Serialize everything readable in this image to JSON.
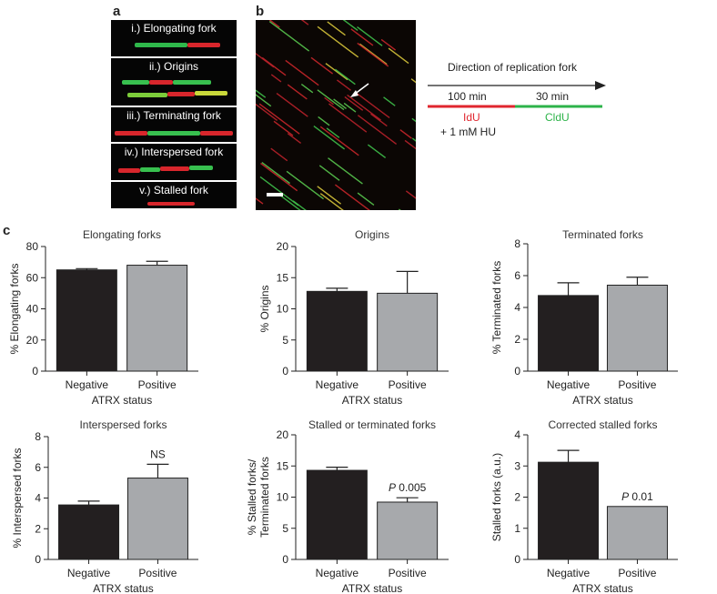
{
  "panels": {
    "a": "a",
    "b": "b",
    "c": "c"
  },
  "fiber_labels": [
    "i.) Elongating fork",
    "ii.) Origins",
    "iii.) Terminating fork",
    "iv.) Interspersed fork",
    "v.) Stalled fork"
  ],
  "diagram": {
    "title": "Direction of replication fork",
    "time1": "100 min",
    "time2": "30 min",
    "label1": "IdU",
    "label2": "CldU",
    "treatment": "+ 1 mM HU"
  },
  "colors": {
    "bar_negative": "#231f20",
    "bar_positive": "#a7a9ac",
    "idu": "#e0262e",
    "cldu": "#2db34a"
  },
  "chart_data": [
    {
      "type": "bar",
      "title": "Elongating forks",
      "xlabel": "ATRX status",
      "ylabel": "% Elongating forks",
      "categories": [
        "Negative",
        "Positive"
      ],
      "values": [
        65,
        68
      ],
      "errors": [
        0.8,
        2.5
      ],
      "ylim": [
        0,
        80
      ],
      "yticks": [
        0,
        20,
        40,
        60,
        80
      ],
      "annotations": [
        "",
        ""
      ]
    },
    {
      "type": "bar",
      "title": "Origins",
      "xlabel": "ATRX status",
      "ylabel": "% Origins",
      "categories": [
        "Negative",
        "Positive"
      ],
      "values": [
        12.8,
        12.5
      ],
      "errors": [
        0.5,
        3.5
      ],
      "ylim": [
        0,
        20
      ],
      "yticks": [
        0,
        5,
        10,
        15,
        20
      ],
      "annotations": [
        "",
        ""
      ]
    },
    {
      "type": "bar",
      "title": "Terminated forks",
      "xlabel": "ATRX status",
      "ylabel": "% Terminated forks",
      "categories": [
        "Negative",
        "Positive"
      ],
      "values": [
        4.75,
        5.4
      ],
      "errors": [
        0.8,
        0.5
      ],
      "ylim": [
        0,
        8
      ],
      "yticks": [
        0,
        2,
        4,
        6,
        8
      ],
      "annotations": [
        "",
        ""
      ]
    },
    {
      "type": "bar",
      "title": "Interspersed forks",
      "xlabel": "ATRX status",
      "ylabel": "% Interspersed forks",
      "categories": [
        "Negative",
        "Positive"
      ],
      "values": [
        3.55,
        5.3
      ],
      "errors": [
        0.25,
        0.9
      ],
      "ylim": [
        0,
        8
      ],
      "yticks": [
        0,
        2,
        4,
        6,
        8
      ],
      "annotations": [
        "",
        "NS"
      ]
    },
    {
      "type": "bar",
      "title": "Stalled or terminated forks",
      "xlabel": "ATRX status",
      "ylabel": [
        "% Stalled forks/",
        "Terminated forks"
      ],
      "categories": [
        "Negative",
        "Positive"
      ],
      "values": [
        14.3,
        9.2
      ],
      "errors": [
        0.5,
        0.7
      ],
      "ylim": [
        0,
        20
      ],
      "yticks": [
        0,
        5,
        10,
        15,
        20
      ],
      "annotations": [
        "",
        "P 0.005"
      ]
    },
    {
      "type": "bar",
      "title": "Corrected stalled forks",
      "xlabel": "ATRX status",
      "ylabel": "Stalled forks (a.u.)",
      "categories": [
        "Negative",
        "Positive"
      ],
      "values": [
        3.12,
        1.7
      ],
      "errors": [
        0.38,
        0.0
      ],
      "ylim": [
        0,
        4
      ],
      "yticks": [
        0,
        1,
        2,
        3,
        4
      ],
      "annotations": [
        "",
        "P 0.01"
      ]
    }
  ]
}
